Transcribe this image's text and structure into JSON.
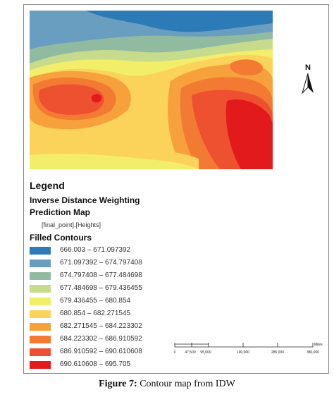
{
  "map": {
    "north_label": "N",
    "legend_title": "Legend",
    "layer_title": "Inverse Distance Weighting",
    "layer_subtitle": "Prediction Map",
    "field_name": "[final_point].[Heights]",
    "contours_title": "Filled Contours",
    "classes": [
      {
        "label": "666.003 – 671.097392",
        "color": "#2c7bb6"
      },
      {
        "label": "671.097392 – 674.797408",
        "color": "#6a9ec0"
      },
      {
        "label": "674.797408 – 677.484698",
        "color": "#91bba0"
      },
      {
        "label": "677.484698 – 679.436455",
        "color": "#c6dc8c"
      },
      {
        "label": "679.436455 – 680.854",
        "color": "#f2ee6a"
      },
      {
        "label": "680.854 – 682.271545",
        "color": "#fbd35a"
      },
      {
        "label": "682.271545 – 684.223302",
        "color": "#f6a13c"
      },
      {
        "label": "684.223302 – 686.910592",
        "color": "#f37a33"
      },
      {
        "label": "686.910592 – 690.610608",
        "color": "#ee5130"
      },
      {
        "label": "690.610608 – 695.705",
        "color": "#e31a1c"
      }
    ],
    "scale": {
      "ticks": [
        "0",
        "47,500",
        "95,000",
        "190,000",
        "285,000",
        "380,000"
      ],
      "units": "Miles"
    }
  },
  "caption": {
    "figure_label": "Figure 7:",
    "text": " Contour map from IDW"
  }
}
